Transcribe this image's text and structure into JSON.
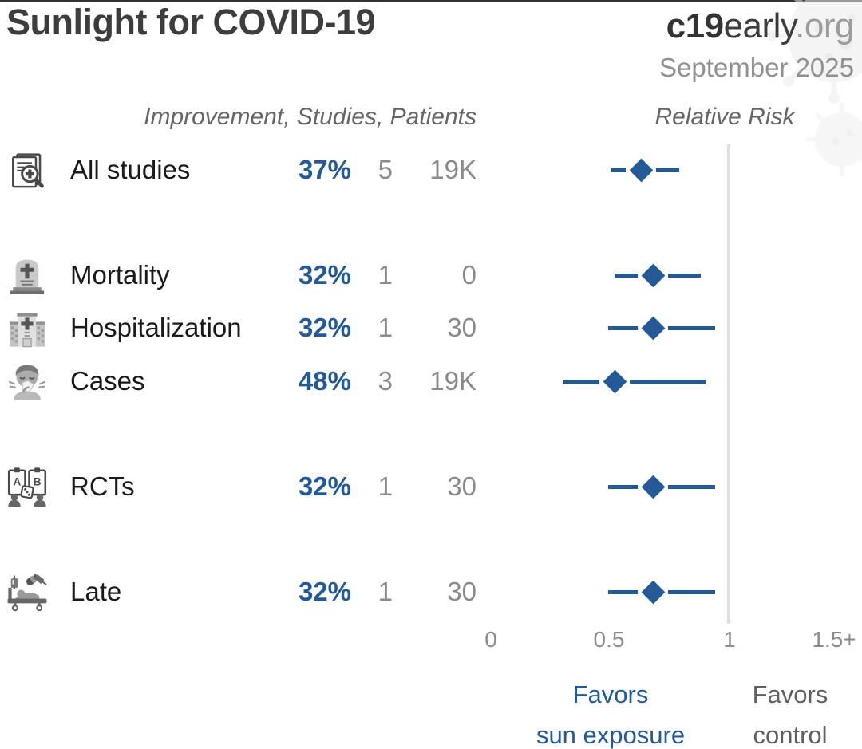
{
  "header": {
    "title": "Sunlight for COVID-19",
    "site_bold": "c19",
    "site_regular": "early",
    "site_tld": ".org",
    "date": "September 2025"
  },
  "table": {
    "left_header": "Improvement, Studies, Patients",
    "right_header": "Relative Risk"
  },
  "chart_data": {
    "type": "forest",
    "title": "Sunlight for COVID-19",
    "x_axis": {
      "tick_labels": [
        "0",
        "0.5",
        "1",
        "1.5+"
      ],
      "tick_values": [
        0,
        0.5,
        1,
        1.5
      ],
      "range": [
        0,
        1.55
      ],
      "reference_value": 1,
      "label": "Relative Risk"
    },
    "rows": [
      {
        "label": "All studies",
        "icon": "all-studies-icon",
        "improvement": "37%",
        "studies": "5",
        "patients": "19K",
        "rr": 0.63,
        "ci_low": 0.5,
        "ci_high": 0.79
      },
      {
        "label": "Mortality",
        "icon": "mortality-icon",
        "improvement": "32%",
        "studies": "1",
        "patients": "0",
        "rr": 0.68,
        "ci_low": 0.52,
        "ci_high": 0.88
      },
      {
        "label": "Hospitalization",
        "icon": "hospitalization-icon",
        "improvement": "32%",
        "studies": "1",
        "patients": "30",
        "rr": 0.68,
        "ci_low": 0.49,
        "ci_high": 0.94
      },
      {
        "label": "Cases",
        "icon": "cases-icon",
        "improvement": "48%",
        "studies": "3",
        "patients": "19K",
        "rr": 0.52,
        "ci_low": 0.3,
        "ci_high": 0.9
      },
      {
        "label": "RCTs",
        "icon": "rcts-icon",
        "improvement": "32%",
        "studies": "1",
        "patients": "30",
        "rr": 0.68,
        "ci_low": 0.49,
        "ci_high": 0.94
      },
      {
        "label": "Late",
        "icon": "late-icon",
        "improvement": "32%",
        "studies": "1",
        "patients": "30",
        "rr": 0.68,
        "ci_low": 0.49,
        "ci_high": 0.94
      }
    ],
    "legend": {
      "favors_treatment_line1": "Favors",
      "favors_treatment_line2": "sun exposure",
      "favors_control_line1": "Favors",
      "favors_control_line2": "control"
    }
  },
  "colors": {
    "accent_blue": "#235A96",
    "marker_blue": "#235A96",
    "text_dark": "#3D3D3D",
    "text_black": "#1A1A1A",
    "text_gray": "#8A8A8A",
    "header_gray": "#666666",
    "reference_line_gray": "#DEDEDE"
  }
}
